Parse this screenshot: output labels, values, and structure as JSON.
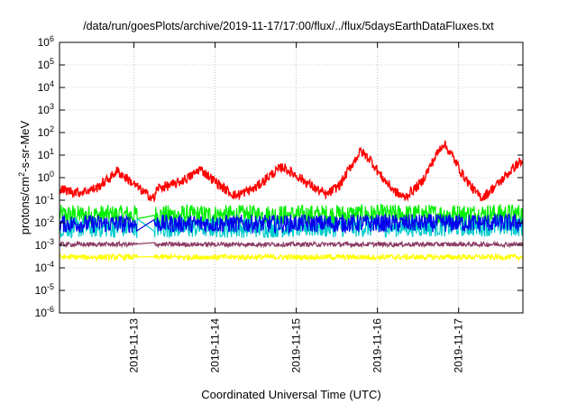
{
  "chart_data": {
    "type": "line",
    "title": "/data/run/goesPlots/archive/2019-11-17/17:00/flux/../flux/5daysEarthDataFluxes.txt",
    "xlabel": "Coordinated Universal Time (UTC)",
    "ylabel": {
      "pre": "protons/cm",
      "sup": "2",
      "post": "-s-sr-MeV"
    },
    "yscale": "log",
    "ylim_exponents": [
      -6,
      6
    ],
    "ytick_labels": [
      {
        "base": "10",
        "exp": "-6"
      },
      {
        "base": "10",
        "exp": "-5"
      },
      {
        "base": "10",
        "exp": "-4"
      },
      {
        "base": "10",
        "exp": "-3"
      },
      {
        "base": "10",
        "exp": "-2"
      },
      {
        "base": "10",
        "exp": "-1"
      },
      {
        "base": "10",
        "exp": "0"
      },
      {
        "base": "10",
        "exp": "1"
      },
      {
        "base": "10",
        "exp": "2"
      },
      {
        "base": "10",
        "exp": "3"
      },
      {
        "base": "10",
        "exp": "4"
      },
      {
        "base": "10",
        "exp": "5"
      },
      {
        "base": "10",
        "exp": "6"
      }
    ],
    "xlim": [
      "2019-11-12T02:00",
      "2019-11-17T19:00"
    ],
    "xticks": [
      "2019-11-13",
      "2019-11-14",
      "2019-11-15",
      "2019-11-16",
      "2019-11-17"
    ],
    "grid": true,
    "series": [
      {
        "color": "#ff0000",
        "noise_decades": 0.22,
        "points": [
          [
            "2019-11-12T02:00",
            0.3
          ],
          [
            "2019-11-12T08:00",
            0.22
          ],
          [
            "2019-11-12T13:00",
            0.35
          ],
          [
            "2019-11-12T17:00",
            1.0
          ],
          [
            "2019-11-12T19:00",
            2.0
          ],
          [
            "2019-11-12T22:00",
            0.9
          ],
          [
            "2019-11-13T03:00",
            0.22
          ],
          [
            "2019-11-13T06:00",
            0.12
          ],
          [
            "2019-11-13T07:00",
            0.35
          ],
          [
            "2019-11-13T12:00",
            0.5
          ],
          [
            "2019-11-13T17:00",
            1.2
          ],
          [
            "2019-11-13T19:30",
            2.5
          ],
          [
            "2019-11-13T23:00",
            0.9
          ],
          [
            "2019-11-14T03:00",
            0.3
          ],
          [
            "2019-11-14T06:00",
            0.16
          ],
          [
            "2019-11-14T12:00",
            0.35
          ],
          [
            "2019-11-14T16:00",
            1.2
          ],
          [
            "2019-11-14T20:00",
            3.0
          ],
          [
            "2019-11-15T01:00",
            1.0
          ],
          [
            "2019-11-15T06:00",
            0.3
          ],
          [
            "2019-11-15T09:00",
            0.17
          ],
          [
            "2019-11-15T13:00",
            0.5
          ],
          [
            "2019-11-15T16:00",
            3.0
          ],
          [
            "2019-11-15T19:00",
            15
          ],
          [
            "2019-11-15T22:00",
            6.0
          ],
          [
            "2019-11-16T01:00",
            1.2
          ],
          [
            "2019-11-16T05:00",
            0.25
          ],
          [
            "2019-11-16T08:00",
            0.13
          ],
          [
            "2019-11-16T13:00",
            0.6
          ],
          [
            "2019-11-16T17:00",
            8.0
          ],
          [
            "2019-11-16T19:30",
            35
          ],
          [
            "2019-11-16T22:00",
            10
          ],
          [
            "2019-11-17T01:00",
            1.5
          ],
          [
            "2019-11-17T05:00",
            0.22
          ],
          [
            "2019-11-17T07:00",
            0.13
          ],
          [
            "2019-11-17T12:00",
            0.6
          ],
          [
            "2019-11-17T16:00",
            2.5
          ],
          [
            "2019-11-17T18:00",
            5.0
          ],
          [
            "2019-11-17T19:00",
            4.0
          ]
        ]
      },
      {
        "color": "#00ee00",
        "noise_decades": 0.45,
        "points": [
          [
            "2019-11-12T02:00",
            0.022
          ],
          [
            "2019-11-14T12:00",
            0.022
          ],
          [
            "2019-11-17T19:00",
            0.025
          ]
        ]
      },
      {
        "color": "#00cccc",
        "noise_decades": 0.45,
        "points": [
          [
            "2019-11-12T02:00",
            0.006
          ],
          [
            "2019-11-14T12:00",
            0.006
          ],
          [
            "2019-11-17T19:00",
            0.007
          ]
        ]
      },
      {
        "color": "#0000ee",
        "noise_decades": 0.4,
        "points": [
          [
            "2019-11-12T02:00",
            0.009
          ],
          [
            "2019-11-14T12:00",
            0.009
          ],
          [
            "2019-11-17T19:00",
            0.01
          ]
        ]
      },
      {
        "color": "#ffff00",
        "noise_decades": 0.12,
        "points": [
          [
            "2019-11-12T02:00",
            0.0003
          ],
          [
            "2019-11-14T12:00",
            0.0003
          ],
          [
            "2019-11-17T19:00",
            0.0003
          ]
        ]
      },
      {
        "color": "#8b3a62",
        "noise_decades": 0.1,
        "points": [
          [
            "2019-11-12T02:00",
            0.0011
          ],
          [
            "2019-11-14T12:00",
            0.0011
          ],
          [
            "2019-11-17T19:00",
            0.0011
          ]
        ]
      }
    ]
  }
}
